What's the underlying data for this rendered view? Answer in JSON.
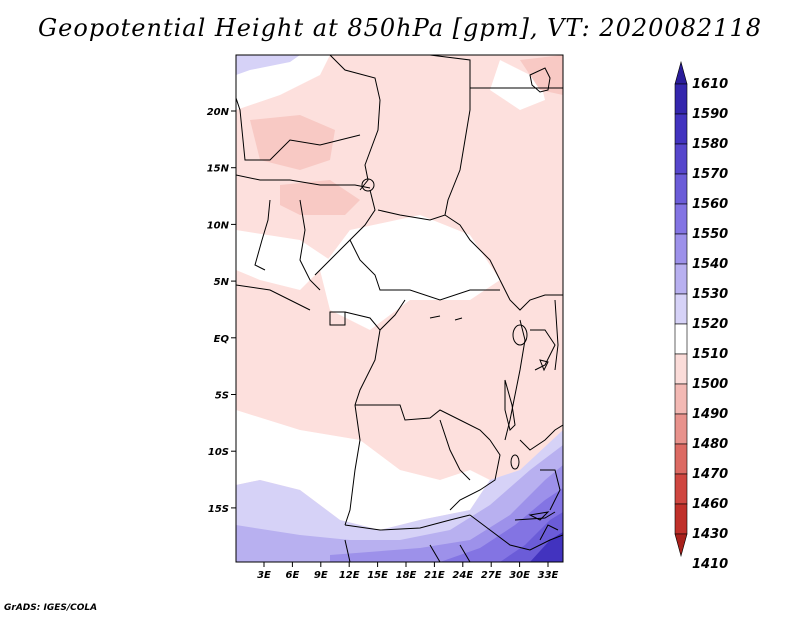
{
  "title": "Geopotential Height at 850hPa [gpm], VT: 2020082118",
  "footer": "GrADS: IGES/COLA",
  "map": {
    "lat_ticks": [
      "20N",
      "15N",
      "10N",
      "5N",
      "EQ",
      "5S",
      "10S",
      "15S"
    ],
    "lon_ticks": [
      "3E",
      "6E",
      "9E",
      "12E",
      "15E",
      "18E",
      "21E",
      "24E",
      "27E",
      "30E",
      "33E"
    ]
  },
  "colorbar": {
    "levels": [
      "1610",
      "1590",
      "1580",
      "1570",
      "1560",
      "1550",
      "1540",
      "1530",
      "1520",
      "1510",
      "1500",
      "1490",
      "1480",
      "1470",
      "1460",
      "1430",
      "1410"
    ],
    "colors": [
      "#2a1c9a",
      "#3426ad",
      "#4233bf",
      "#5646cc",
      "#6b5cd8",
      "#8374e3",
      "#9d91ea",
      "#b8b0f0",
      "#d6d2f7",
      "#ffffff",
      "#fbdcd9",
      "#f3b9b4",
      "#e8928c",
      "#dc6a63",
      "#cf4640",
      "#c0302a",
      "#a8201b"
    ]
  }
}
